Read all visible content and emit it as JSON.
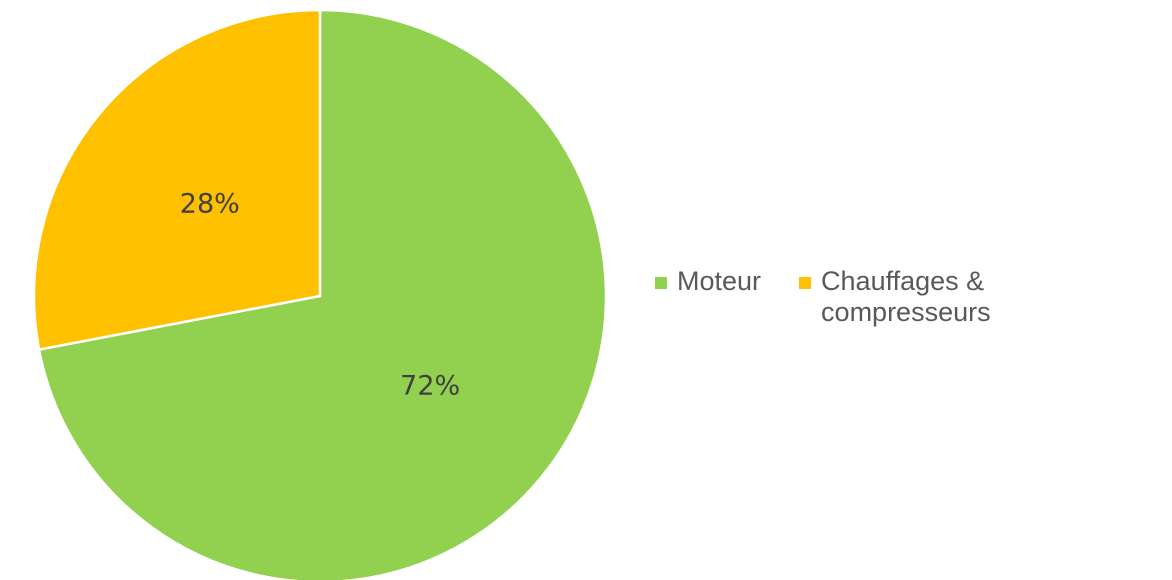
{
  "chart_data": {
    "type": "pie",
    "categories": [
      "Moteur",
      "Chauffages & compresseurs"
    ],
    "values": [
      72,
      28
    ],
    "value_labels": [
      "72%",
      "28%"
    ],
    "colors": [
      "#92d050",
      "#ffc000"
    ],
    "legend": "right"
  }
}
